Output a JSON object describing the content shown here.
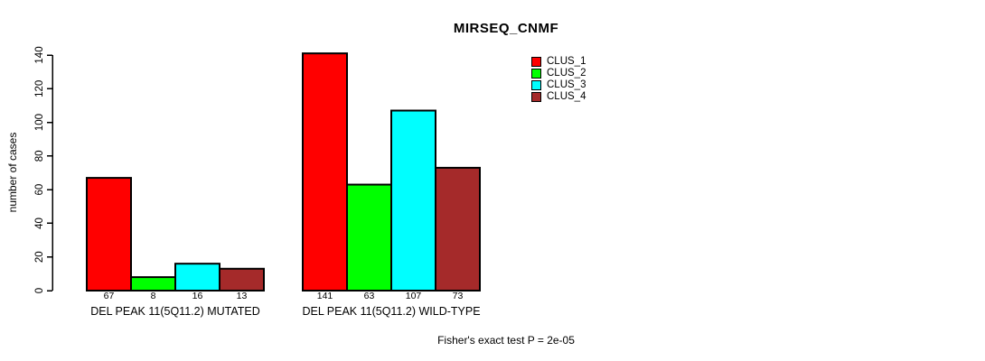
{
  "chart_data": {
    "type": "bar",
    "title": "MIRSEQ_CNMF",
    "ylabel": "number of cases",
    "xlabel": "",
    "categories": [
      "DEL PEAK 11(5Q11.2) MUTATED",
      "DEL PEAK 11(5Q11.2) WILD-TYPE"
    ],
    "series": [
      {
        "name": "CLUS_1",
        "color": "#FF0000",
        "values": [
          67,
          141
        ]
      },
      {
        "name": "CLUS_2",
        "color": "#00FF00",
        "values": [
          8,
          63
        ]
      },
      {
        "name": "CLUS_3",
        "color": "#00FFFF",
        "values": [
          16,
          107
        ]
      },
      {
        "name": "CLUS_4",
        "color": "#A52A2A",
        "values": [
          13,
          73
        ]
      }
    ],
    "yticks": [
      0,
      20,
      40,
      60,
      80,
      100,
      120,
      140
    ],
    "ylim": [
      0,
      140
    ],
    "grid": false,
    "bar_value_labels": true,
    "legend_position": "top-right",
    "annotation": "Fisher's exact test P = 2e-05"
  }
}
